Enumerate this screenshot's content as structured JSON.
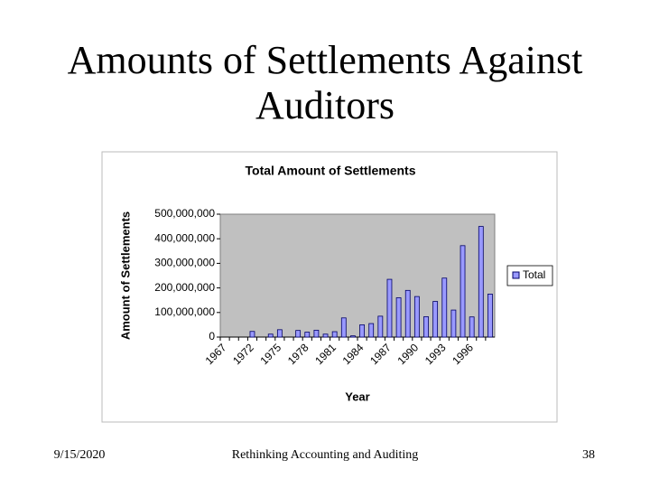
{
  "slide": {
    "title": "Amounts of Settlements Against Auditors",
    "footer": {
      "date": "9/15/2020",
      "center": "Rethinking Accounting and Auditing",
      "page": "38"
    }
  },
  "chart_data": {
    "type": "bar",
    "title": "Total Amount of Settlements",
    "x_label": "Year",
    "y_label": "Amount of Settlements",
    "categories": [
      "1967",
      null,
      null,
      "1972",
      null,
      null,
      "1975",
      null,
      null,
      "1978",
      null,
      null,
      "1981",
      null,
      null,
      "1984",
      null,
      null,
      "1987",
      null,
      null,
      "1990",
      null,
      null,
      "1993",
      null,
      null,
      "1996",
      null,
      null
    ],
    "series": [
      {
        "name": "Total",
        "color": "#9999ff",
        "values": [
          0,
          0,
          0,
          23000000,
          0,
          12000000,
          30000000,
          0,
          27000000,
          20000000,
          28000000,
          12000000,
          22000000,
          78000000,
          5000000,
          50000000,
          55000000,
          85000000,
          235000000,
          160000000,
          190000000,
          165000000,
          83000000,
          145000000,
          240000000,
          110000000,
          372000000,
          82000000,
          450000000,
          175000000
        ]
      }
    ],
    "ylim": [
      0,
      500000000
    ],
    "yticks": [
      0,
      {
        "value": 100000000,
        "label": "100,000,000"
      },
      {
        "value": 200000000,
        "label": "200,000,000"
      },
      {
        "value": 300000000,
        "label": "300,000,000"
      },
      {
        "value": 400000000,
        "label": "400,000,000"
      },
      {
        "value": 500000000,
        "label": "500,000,000"
      }
    ],
    "grid": false,
    "legend": "right",
    "plot_background": "#c0c0c0"
  }
}
